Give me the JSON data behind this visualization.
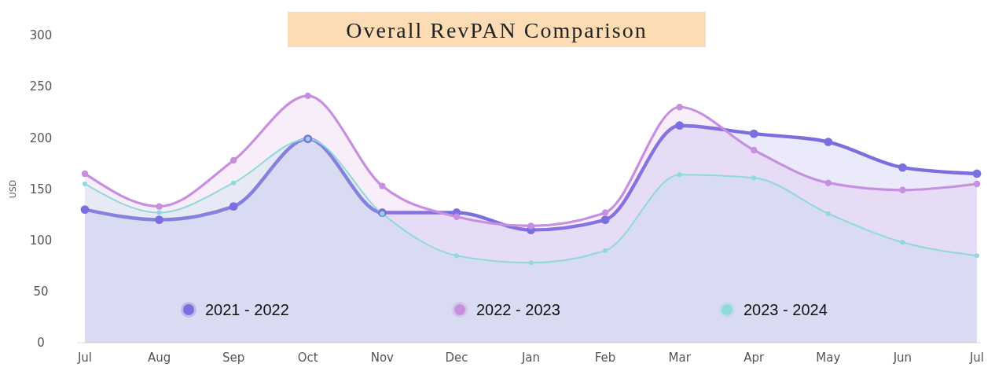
{
  "chart_data": {
    "type": "area",
    "title": "Overall RevPAN Comparison",
    "ylabel": "USD",
    "categories": [
      "Jul",
      "Aug",
      "Sep",
      "Oct",
      "Nov",
      "Dec",
      "Jan",
      "Feb",
      "Mar",
      "Apr",
      "May",
      "Jun",
      "Jul"
    ],
    "series": [
      {
        "name": "2021 - 2022",
        "color": "#7b6fe0",
        "values": [
          130,
          120,
          133,
          199,
          127,
          127,
          110,
          120,
          212,
          204,
          196,
          171,
          165
        ]
      },
      {
        "name": "2022 - 2023",
        "color": "#c78fe0",
        "values": [
          165,
          133,
          178,
          241,
          153,
          123,
          114,
          127,
          230,
          188,
          156,
          149,
          155
        ]
      },
      {
        "name": "2023 - 2024",
        "color": "#8fd9dc",
        "values": [
          155,
          127,
          156,
          199,
          126,
          85,
          78,
          90,
          164,
          161,
          126,
          98,
          85
        ]
      }
    ],
    "ylim": [
      0,
      300
    ],
    "yticks": [
      0,
      50,
      100,
      150,
      200,
      250,
      300
    ],
    "grid": false,
    "legend": "bottom",
    "marker": "circle"
  }
}
